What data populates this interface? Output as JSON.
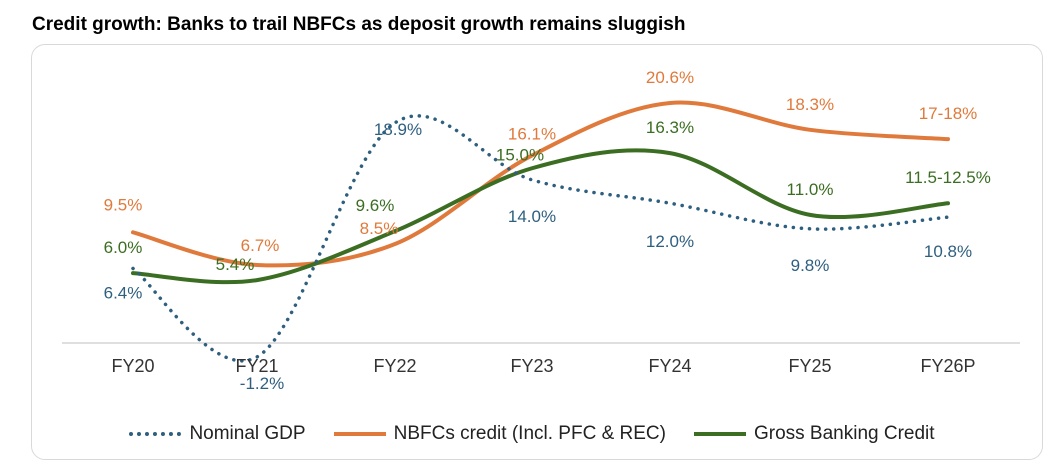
{
  "title": "Credit growth: Banks to trail NBFCs as deposit growth remains sluggish",
  "chart_data": {
    "type": "line",
    "categories": [
      "FY20",
      "FY21",
      "FY22",
      "FY23",
      "FY24",
      "FY25",
      "FY26P"
    ],
    "series": [
      {
        "name": "Nominal GDP",
        "values": [
          6.4,
          -1.2,
          18.9,
          14.0,
          12.0,
          9.8,
          10.8
        ],
        "labels": [
          "6.4%",
          "-1.2%",
          "18.9%",
          "14.0%",
          "12.0%",
          "9.8%",
          "10.8%"
        ],
        "color": "#2e5f7f",
        "style": "dotted"
      },
      {
        "name": "NBFCs credit (Incl. PFC & REC)",
        "values": [
          9.5,
          6.7,
          8.5,
          16.1,
          20.6,
          18.3,
          17.5
        ],
        "labels": [
          "9.5%",
          "6.7%",
          "8.5%",
          "16.1%",
          "20.6%",
          "18.3%",
          "17-18%"
        ],
        "color": "#e07a3c",
        "style": "solid"
      },
      {
        "name": "Gross Banking Credit",
        "values": [
          6.0,
          5.4,
          9.6,
          15.0,
          16.3,
          11.0,
          12.0
        ],
        "labels": [
          "6.0%",
          "5.4%",
          "9.6%",
          "15.0%",
          "16.3%",
          "11.0%",
          "11.5-12.5%"
        ],
        "color": "#3b6e22",
        "style": "solid"
      }
    ],
    "xlabel": "",
    "ylabel": "",
    "ylim": [
      -3,
      23
    ],
    "grid": false,
    "legend_position": "bottom"
  }
}
